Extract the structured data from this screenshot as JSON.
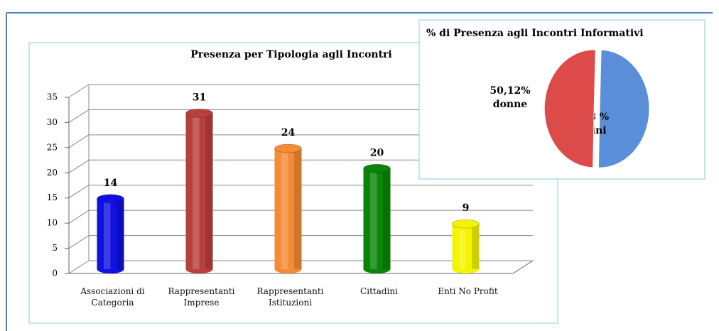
{
  "chart_data": [
    {
      "type": "bar",
      "title": "Presenza per Tipologia agli Incontri",
      "categories": [
        "Associazioni di\nCategoria",
        "Rappresentanti\nImprese",
        "Rappresentanti\nIstituzioni",
        "Cittadini",
        "Enti No Profit"
      ],
      "values": [
        14,
        31,
        24,
        20,
        9
      ],
      "colors": [
        "#1010e0",
        "#b8403c",
        "#f38c34",
        "#0a850a",
        "#f4f400"
      ],
      "ylim": [
        0,
        35
      ],
      "yticks": [
        0,
        5,
        10,
        15,
        20,
        25,
        30,
        35
      ],
      "grid": true
    },
    {
      "type": "pie",
      "title": "% di Presenza agli Incontri Informativi",
      "categories": [
        "uomini",
        "donne"
      ],
      "values": [
        49.88,
        50.12
      ],
      "value_labels": [
        "49,88 %",
        "50,12%"
      ],
      "colors": [
        "#5a8ed8",
        "#dc4a4a"
      ]
    }
  ]
}
